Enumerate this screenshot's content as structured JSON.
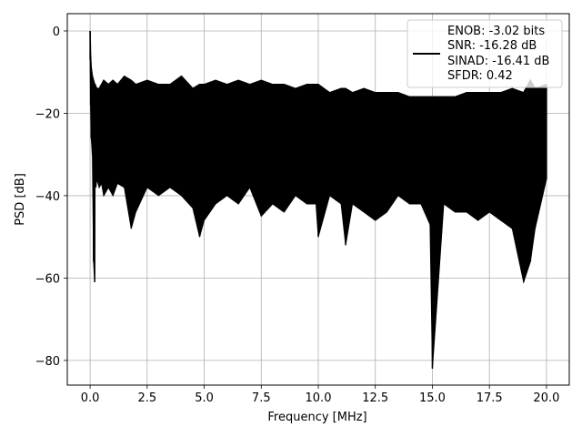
{
  "chart_data": {
    "type": "line",
    "title": "",
    "xlabel": "Frequency [MHz]",
    "ylabel": "PSD [dB]",
    "xlim": [
      -1.0,
      21.0
    ],
    "ylim": [
      -86.0,
      4.2
    ],
    "xticks": [
      0.0,
      2.5,
      5.0,
      7.5,
      10.0,
      12.5,
      15.0,
      17.5,
      20.0
    ],
    "xtick_labels": [
      "0.0",
      "2.5",
      "5.0",
      "7.5",
      "10.0",
      "12.5",
      "15.0",
      "17.5",
      "20.0"
    ],
    "yticks": [
      0,
      -20,
      -40,
      -60,
      -80
    ],
    "ytick_labels": [
      "0",
      "−20",
      "−40",
      "−60",
      "−80"
    ],
    "grid": true,
    "legend_placement": "top-right",
    "legend_lines": [
      "ENOB: -3.02 bits",
      "SNR: -16.28 dB",
      "SINAD: -16.41 dB",
      "SFDR: 0.42"
    ],
    "series_color": "#000000",
    "series": [
      {
        "name": "ENOB: -3.02 bits",
        "x": [
          0.0,
          0.02,
          0.05,
          0.1,
          0.15,
          0.2,
          0.22,
          0.25,
          0.3,
          0.4,
          0.5,
          0.6,
          0.8,
          1.0,
          1.2,
          1.5,
          1.8,
          2.0,
          2.5,
          3.0,
          3.5,
          4.0,
          4.5,
          4.8,
          5.0,
          5.5,
          6.0,
          6.5,
          7.0,
          7.5,
          8.0,
          8.5,
          9.0,
          9.5,
          9.9,
          10.0,
          10.5,
          11.0,
          11.2,
          11.5,
          12.0,
          12.5,
          13.0,
          13.5,
          14.0,
          14.5,
          14.9,
          15.0,
          15.5,
          16.0,
          16.5,
          17.0,
          17.5,
          18.0,
          18.5,
          19.0,
          19.3,
          19.5,
          20.0
        ],
        "y_top": [
          0.0,
          -6,
          -9,
          -11,
          -12,
          -13,
          -13,
          -13.5,
          -14,
          -14,
          -13,
          -12,
          -13,
          -12,
          -13,
          -11,
          -12,
          -13,
          -12,
          -13,
          -13,
          -11,
          -14,
          -13,
          -13,
          -12,
          -13,
          -12,
          -13,
          -12,
          -13,
          -13,
          -14,
          -13,
          -13,
          -13,
          -15,
          -14,
          -14,
          -15,
          -14,
          -15,
          -15,
          -15,
          -16,
          -16,
          -16,
          -16,
          -16,
          -16,
          -15,
          -15,
          -15,
          -15,
          -14,
          -15,
          -12,
          -14,
          -13
        ],
        "y_bottom": [
          -7,
          -18,
          -26,
          -30,
          -56,
          -61,
          -36,
          -38,
          -36,
          -38,
          -37,
          -40,
          -38,
          -40,
          -37,
          -38,
          -48,
          -44,
          -38,
          -40,
          -38,
          -40,
          -43,
          -50,
          -46,
          -42,
          -40,
          -42,
          -38,
          -45,
          -42,
          -44,
          -40,
          -42,
          -42,
          -50,
          -40,
          -42,
          -52,
          -42,
          -44,
          -46,
          -44,
          -40,
          -42,
          -42,
          -47,
          -82,
          -42,
          -44,
          -44,
          -46,
          -44,
          -46,
          -48,
          -61,
          -56,
          -48,
          -36
        ]
      }
    ]
  }
}
